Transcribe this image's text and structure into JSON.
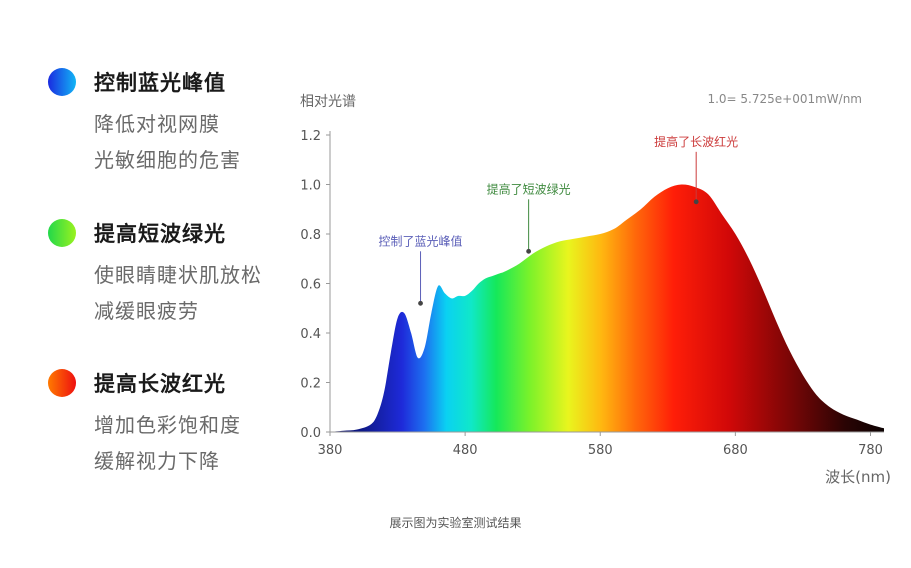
{
  "legend": [
    {
      "title": "控制蓝光峰值",
      "desc": [
        "降低对视网膜",
        "光敏细胞的危害"
      ],
      "colors": [
        "#1a2be0",
        "#12b5f5"
      ]
    },
    {
      "title": "提高短波绿光",
      "desc": [
        "使眼睛睫状肌放松",
        "减缓眼疲劳"
      ],
      "colors": [
        "#22d84a",
        "#9af21f"
      ]
    },
    {
      "title": "提高长波红光",
      "desc": [
        "增加色彩饱和度",
        "缓解视力下降"
      ],
      "colors": [
        "#ff7a00",
        "#ee1010"
      ]
    }
  ],
  "footnote": "展示图为实验室测试结果",
  "chart_data": {
    "type": "area",
    "ylabel": "相对光谱",
    "xlabel": "波长(nm)",
    "scale_note": "1.0= 5.725e+001mW/nm",
    "xlim": [
      380,
      790
    ],
    "ylim": [
      0,
      1.2
    ],
    "xticks": [
      380,
      480,
      580,
      680,
      780
    ],
    "yticks": [
      "0.0",
      "0.2",
      "0.4",
      "0.6",
      "0.8",
      "1.0",
      "1.2"
    ],
    "x": [
      380,
      390,
      400,
      410,
      415,
      420,
      425,
      430,
      435,
      440,
      445,
      450,
      455,
      460,
      465,
      470,
      475,
      480,
      485,
      490,
      495,
      500,
      505,
      510,
      520,
      530,
      540,
      550,
      560,
      570,
      580,
      590,
      600,
      610,
      620,
      630,
      640,
      650,
      660,
      670,
      680,
      690,
      700,
      710,
      720,
      730,
      740,
      750,
      760,
      770,
      780,
      790
    ],
    "y": [
      0.0,
      0.005,
      0.01,
      0.03,
      0.07,
      0.16,
      0.32,
      0.46,
      0.48,
      0.4,
      0.3,
      0.34,
      0.48,
      0.59,
      0.56,
      0.54,
      0.55,
      0.55,
      0.57,
      0.6,
      0.62,
      0.63,
      0.64,
      0.65,
      0.68,
      0.72,
      0.75,
      0.77,
      0.78,
      0.79,
      0.8,
      0.82,
      0.86,
      0.9,
      0.95,
      0.985,
      1.0,
      0.99,
      0.96,
      0.88,
      0.8,
      0.7,
      0.58,
      0.45,
      0.33,
      0.23,
      0.15,
      0.1,
      0.07,
      0.05,
      0.03,
      0.015
    ],
    "annotations": [
      {
        "text": "控制了蓝光峰值",
        "x": 447,
        "y": 0.52,
        "color": "#5b5fb8"
      },
      {
        "text": "提高了短波绿光",
        "x": 527,
        "y": 0.73,
        "color": "#3f8a3f"
      },
      {
        "text": "提高了长波红光",
        "x": 651,
        "y": 0.93,
        "color": "#cc3b3b"
      }
    ]
  }
}
